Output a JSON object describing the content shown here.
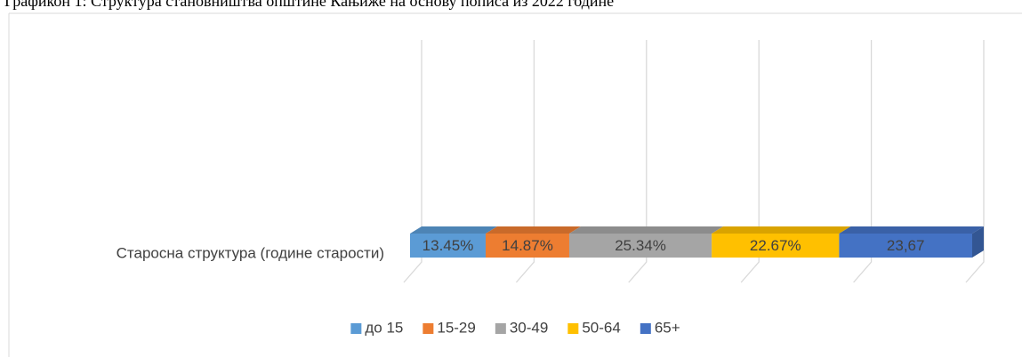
{
  "chart_data": {
    "type": "bar3d_stacked",
    "title": "Графикон 1: Структура становништва општине Кањиже на основу пописа из 2022 године",
    "categories": [
      "Старосна структура (године старости)"
    ],
    "series": [
      {
        "name": "до 15",
        "color": "#5b9bd5",
        "values": [
          13.45
        ],
        "value_labels": [
          "13.45%"
        ]
      },
      {
        "name": "15-29",
        "color": "#ed7d31",
        "values": [
          14.87
        ],
        "value_labels": [
          "14.87%"
        ]
      },
      {
        "name": "30-49",
        "color": "#a5a5a5",
        "values": [
          25.34
        ],
        "value_labels": [
          "25.34%"
        ]
      },
      {
        "name": "50-64",
        "color": "#ffc000",
        "values": [
          22.67
        ],
        "value_labels": [
          "22.67%"
        ]
      },
      {
        "name": "65+",
        "color": "#4472c4",
        "values": [
          23.67
        ],
        "value_labels": [
          "23,67"
        ]
      }
    ],
    "xlim": [
      0,
      100
    ],
    "xticks": [
      0,
      20,
      40,
      60,
      80,
      100
    ],
    "grid": true,
    "legend": "bottom"
  }
}
